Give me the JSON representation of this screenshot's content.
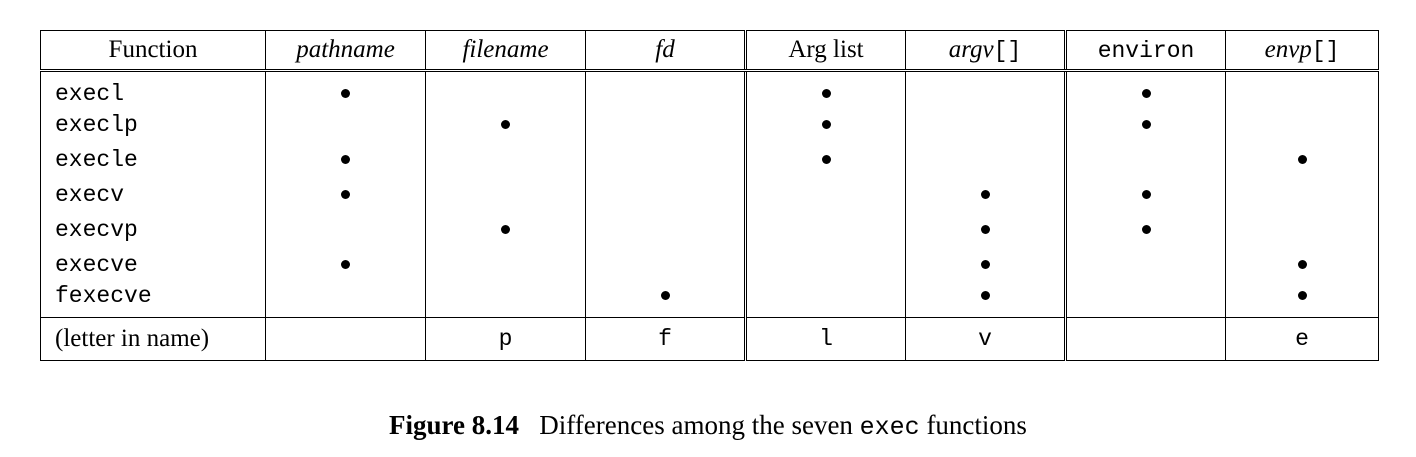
{
  "table": {
    "headers": [
      {
        "text": "Function",
        "style": "roman"
      },
      {
        "text": "pathname",
        "style": "italic"
      },
      {
        "text": "filename",
        "style": "italic"
      },
      {
        "text": "fd",
        "style": "italic"
      },
      {
        "text": "Arg list",
        "style": "roman"
      },
      {
        "text": "argv",
        "suffix": "[]",
        "style": "italic"
      },
      {
        "text": "environ",
        "style": "mono"
      },
      {
        "text": "envp",
        "suffix": "[]",
        "style": "italic"
      }
    ],
    "rows": [
      {
        "name": "execl",
        "marks": [
          true,
          false,
          false,
          true,
          false,
          true,
          false
        ]
      },
      {
        "name": "execlp",
        "marks": [
          false,
          true,
          false,
          true,
          false,
          true,
          false
        ]
      },
      {
        "name": "execle",
        "marks": [
          true,
          false,
          false,
          true,
          false,
          false,
          true
        ]
      },
      {
        "name": "execv",
        "marks": [
          true,
          false,
          false,
          false,
          true,
          true,
          false
        ]
      },
      {
        "name": "execvp",
        "marks": [
          false,
          true,
          false,
          false,
          true,
          true,
          false
        ]
      },
      {
        "name": "execve",
        "marks": [
          true,
          false,
          false,
          false,
          true,
          false,
          true
        ]
      },
      {
        "name": "fexecve",
        "marks": [
          false,
          false,
          true,
          false,
          true,
          false,
          true
        ]
      }
    ],
    "letter_row": {
      "label": "(letter in name)",
      "letters": [
        "",
        "p",
        "f",
        "l",
        "v",
        "",
        "e"
      ]
    }
  },
  "caption": {
    "figure": "Figure 8.14",
    "text_before": "Differences among the seven",
    "code": "exec",
    "text_after": "functions"
  }
}
